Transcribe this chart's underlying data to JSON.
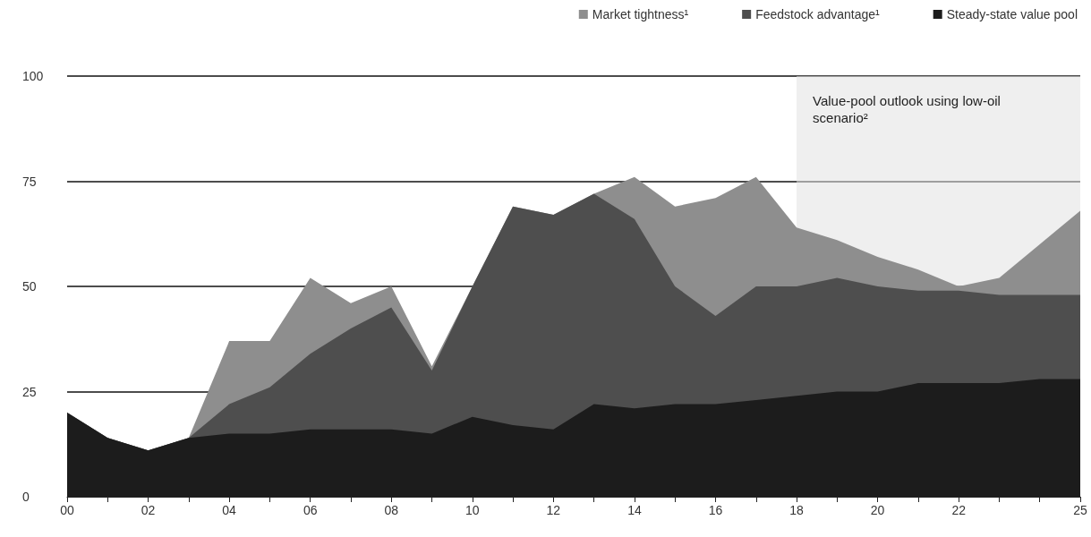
{
  "chart_data": {
    "type": "area",
    "stacked": true,
    "x": [
      2000,
      2001,
      2002,
      2003,
      2004,
      2005,
      2006,
      2007,
      2008,
      2009,
      2010,
      2011,
      2012,
      2013,
      2014,
      2015,
      2016,
      2017,
      2018,
      2019,
      2020,
      2021,
      2022,
      2023,
      2024,
      2025
    ],
    "series": [
      {
        "name": "Steady-state value pool",
        "color": "#1c1c1c",
        "values": [
          20,
          14,
          11,
          14,
          15,
          15,
          16,
          16,
          16,
          15,
          19,
          17,
          16,
          22,
          21,
          22,
          22,
          23,
          24,
          25,
          25,
          27,
          27,
          27,
          28,
          28
        ]
      },
      {
        "name": "Feedstock advantage¹",
        "color": "#4e4e4e",
        "values": [
          0,
          0,
          0,
          0,
          7,
          11,
          18,
          24,
          29,
          15,
          31,
          52,
          51,
          50,
          45,
          28,
          21,
          27,
          26,
          27,
          25,
          22,
          22,
          21,
          20,
          20
        ]
      },
      {
        "name": "Market tightness¹",
        "color": "#8e8e8e",
        "values": [
          0,
          0,
          0,
          0,
          15,
          11,
          18,
          6,
          5,
          1,
          0,
          0,
          0,
          0,
          10,
          19,
          28,
          26,
          14,
          9,
          7,
          5,
          1,
          4,
          12,
          20
        ]
      }
    ],
    "xlim": [
      2000,
      2025
    ],
    "xticks": [
      {
        "value": 2000,
        "label": "00"
      },
      {
        "value": 2001,
        "label": null
      },
      {
        "value": 2002,
        "label": "02"
      },
      {
        "value": 2003,
        "label": null
      },
      {
        "value": 2004,
        "label": "04"
      },
      {
        "value": 2005,
        "label": null
      },
      {
        "value": 2006,
        "label": "06"
      },
      {
        "value": 2007,
        "label": null
      },
      {
        "value": 2008,
        "label": "08"
      },
      {
        "value": 2009,
        "label": null
      },
      {
        "value": 2010,
        "label": "10"
      },
      {
        "value": 2011,
        "label": null
      },
      {
        "value": 2012,
        "label": "12"
      },
      {
        "value": 2013,
        "label": null
      },
      {
        "value": 2014,
        "label": "14"
      },
      {
        "value": 2015,
        "label": null
      },
      {
        "value": 2016,
        "label": "16"
      },
      {
        "value": 2017,
        "label": null
      },
      {
        "value": 2018,
        "label": "18"
      },
      {
        "value": 2019,
        "label": null
      },
      {
        "value": 2020,
        "label": "20"
      },
      {
        "value": 2021,
        "label": null
      },
      {
        "value": 2022,
        "label": "22"
      },
      {
        "value": 2023,
        "label": null
      },
      {
        "value": 2024,
        "label": null
      },
      {
        "value": 2025,
        "label": "25"
      }
    ],
    "ylim": [
      0,
      100
    ],
    "yticks": [
      0,
      25,
      50,
      75,
      100
    ],
    "grid": "y",
    "legend": "top right",
    "bands": [
      {
        "axis": "x",
        "from": 2018,
        "to": 2025,
        "label": "Value-pool outlook using low-oil scenario²",
        "color": "#e2e2e2"
      }
    ]
  }
}
